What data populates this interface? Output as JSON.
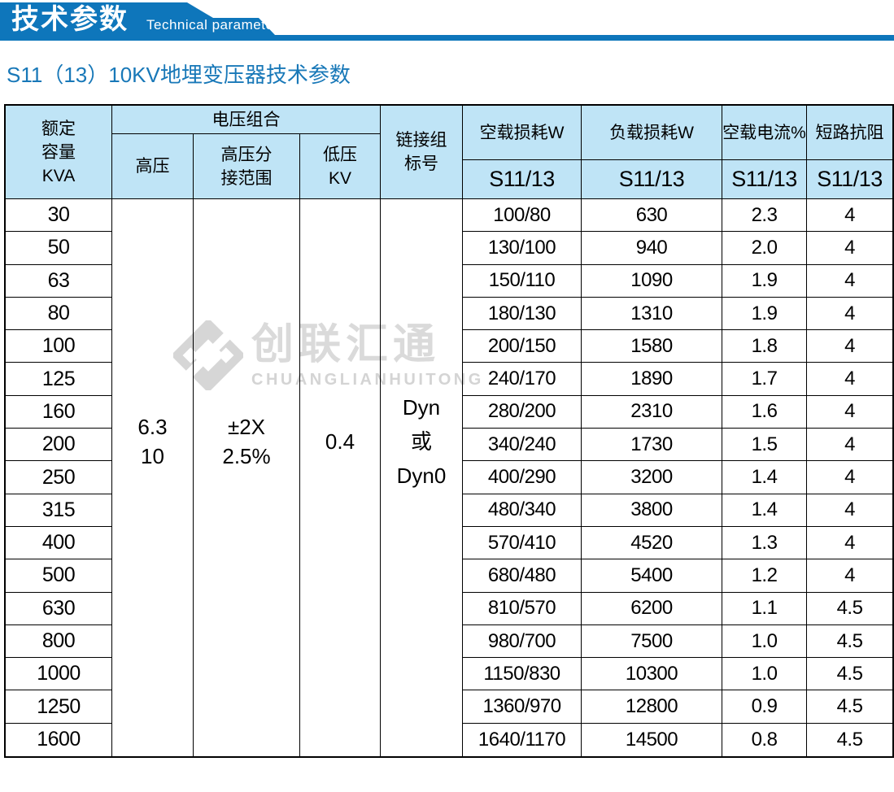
{
  "banner": {
    "title_zh": "技术参数",
    "title_en": "Technical parameter"
  },
  "page_title": "S11（13）10KV地埋变压器技术参数",
  "watermark": {
    "logo": "diamond-logo",
    "name_zh": "创联汇通",
    "name_en": "CHUANGLIANHUITONG"
  },
  "colors": {
    "accent_blue": "#0e76bb",
    "title_blue": "#1878b8",
    "header_bg": "#bfe4f6",
    "border_black": "#000000",
    "watermark_gray": "#d6d6d6"
  },
  "table": {
    "header": {
      "rated_capacity": "额定\n容量\nKVA",
      "voltage_group": "电压组合",
      "hv": "高压",
      "hv_tap": "高压分\n接范围",
      "lv": "低压\nKV",
      "link_group": "链接组\n标号",
      "noload_loss": "空载损耗W",
      "load_loss": "负载损耗W",
      "noload_current": "空载电流%",
      "impedance": "短路抗阻",
      "model": "S11/13"
    },
    "merged_values": {
      "hv_value": "6.3\n10",
      "hv_tap_value": "±2X\n2.5%",
      "lv_value": "0.4",
      "link_group_value": "Dyn\n或\nDyn0"
    },
    "rows": [
      {
        "capacity": "30",
        "noload_loss": "100/80",
        "load_loss": "630",
        "noload_current": "2.3",
        "impedance": "4"
      },
      {
        "capacity": "50",
        "noload_loss": "130/100",
        "load_loss": "940",
        "noload_current": "2.0",
        "impedance": "4"
      },
      {
        "capacity": "63",
        "noload_loss": "150/110",
        "load_loss": "1090",
        "noload_current": "1.9",
        "impedance": "4"
      },
      {
        "capacity": "80",
        "noload_loss": "180/130",
        "load_loss": "1310",
        "noload_current": "1.9",
        "impedance": "4"
      },
      {
        "capacity": "100",
        "noload_loss": "200/150",
        "load_loss": "1580",
        "noload_current": "1.8",
        "impedance": "4"
      },
      {
        "capacity": "125",
        "noload_loss": "240/170",
        "load_loss": "1890",
        "noload_current": "1.7",
        "impedance": "4"
      },
      {
        "capacity": "160",
        "noload_loss": "280/200",
        "load_loss": "2310",
        "noload_current": "1.6",
        "impedance": "4"
      },
      {
        "capacity": "200",
        "noload_loss": "340/240",
        "load_loss": "1730",
        "noload_current": "1.5",
        "impedance": "4"
      },
      {
        "capacity": "250",
        "noload_loss": "400/290",
        "load_loss": "3200",
        "noload_current": "1.4",
        "impedance": "4"
      },
      {
        "capacity": "315",
        "noload_loss": "480/340",
        "load_loss": "3800",
        "noload_current": "1.4",
        "impedance": "4"
      },
      {
        "capacity": "400",
        "noload_loss": "570/410",
        "load_loss": "4520",
        "noload_current": "1.3",
        "impedance": "4"
      },
      {
        "capacity": "500",
        "noload_loss": "680/480",
        "load_loss": "5400",
        "noload_current": "1.2",
        "impedance": "4"
      },
      {
        "capacity": "630",
        "noload_loss": "810/570",
        "load_loss": "6200",
        "noload_current": "1.1",
        "impedance": "4.5"
      },
      {
        "capacity": "800",
        "noload_loss": "980/700",
        "load_loss": "7500",
        "noload_current": "1.0",
        "impedance": "4.5"
      },
      {
        "capacity": "1000",
        "noload_loss": "1150/830",
        "load_loss": "10300",
        "noload_current": "1.0",
        "impedance": "4.5"
      },
      {
        "capacity": "1250",
        "noload_loss": "1360/970",
        "load_loss": "12800",
        "noload_current": "0.9",
        "impedance": "4.5"
      },
      {
        "capacity": "1600",
        "noload_loss": "1640/1170",
        "load_loss": "14500",
        "noload_current": "0.8",
        "impedance": "4.5"
      }
    ]
  }
}
